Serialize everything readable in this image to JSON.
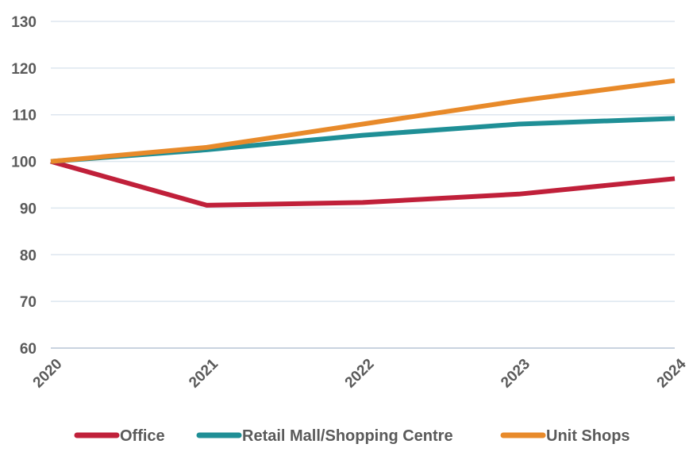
{
  "chart_data": {
    "type": "line",
    "x": [
      "2020",
      "2021",
      "2022",
      "2023",
      "2024"
    ],
    "ylim": [
      60,
      130
    ],
    "yticks": [
      60,
      70,
      80,
      90,
      100,
      110,
      120,
      130
    ],
    "grid": true,
    "legend_position": "bottom",
    "series": [
      {
        "name": "Office",
        "color": "#c0203a",
        "values": [
          100,
          90.6,
          91.2,
          93.0,
          96.3
        ]
      },
      {
        "name": "Retail Mall/Shopping Centre",
        "color": "#1f8f96",
        "values": [
          100,
          102.5,
          105.6,
          108.0,
          109.2
        ]
      },
      {
        "name": "Unit Shops",
        "color": "#e88a2a",
        "values": [
          100,
          103.0,
          108.0,
          113.0,
          117.3
        ]
      }
    ]
  }
}
